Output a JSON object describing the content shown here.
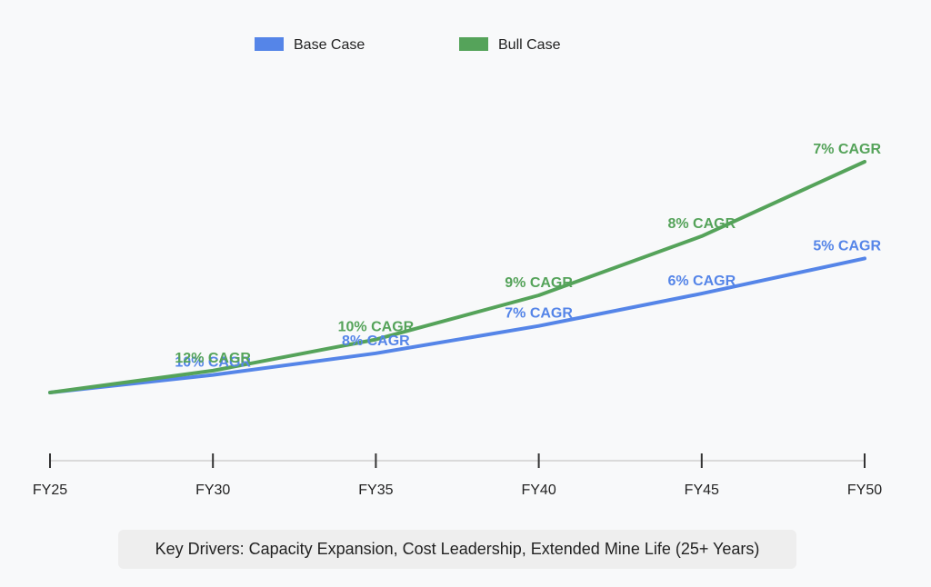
{
  "chart_data": {
    "type": "line",
    "categories": [
      "FY25",
      "FY30",
      "FY35",
      "FY40",
      "FY45",
      "FY50"
    ],
    "title": "",
    "xlabel": "",
    "ylabel": "",
    "grid": false,
    "legend": "top",
    "series": [
      {
        "name": "Base Case",
        "color": "#5585e8",
        "values": [
          100,
          161,
          236,
          331,
          443,
          565
        ],
        "labels": [
          "",
          "10% CAGR",
          "8% CAGR",
          "7% CAGR",
          "6% CAGR",
          "5% CAGR"
        ]
      },
      {
        "name": "Bull Case",
        "color": "#55a35a",
        "values": [
          100,
          176,
          284,
          437,
          642,
          900
        ],
        "labels": [
          "",
          "12% CAGR",
          "10% CAGR",
          "9% CAGR",
          "8% CAGR",
          "7% CAGR"
        ]
      }
    ]
  },
  "footer": {
    "drivers": "Key Drivers: Capacity Expansion, Cost Leadership, Extended Mine Life (25+ Years)"
  }
}
